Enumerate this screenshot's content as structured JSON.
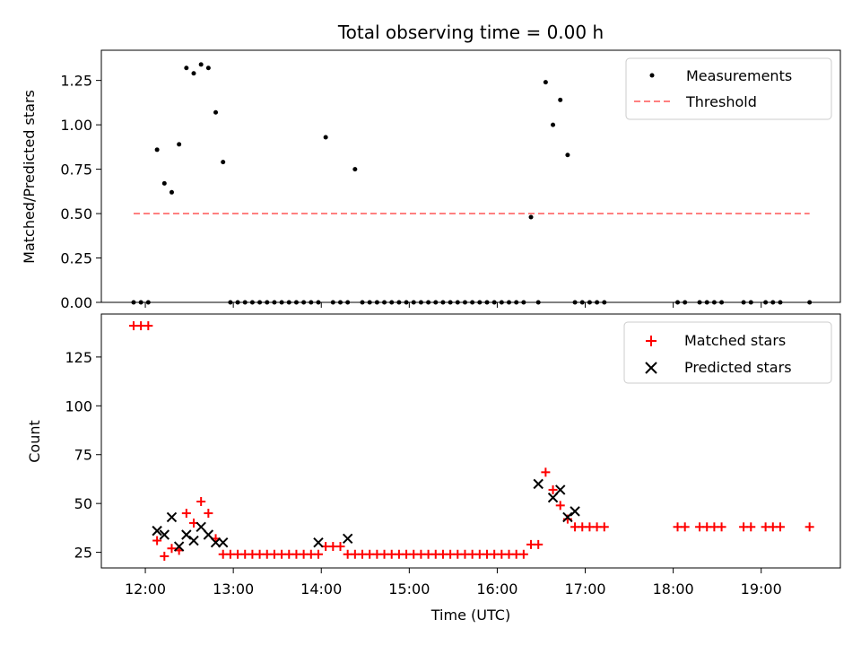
{
  "chart_data": [
    {
      "type": "scatter",
      "title": "Total observing time = 0.00 h",
      "xlabel": "",
      "ylabel": "Matched/Predicted stars",
      "xlim": [
        "11:30",
        "19:54"
      ],
      "ylim": [
        0,
        1.42
      ],
      "yticks": [
        "0.00",
        "0.25",
        "0.50",
        "0.75",
        "1.00",
        "1.25"
      ],
      "grid": false,
      "legend_position": "top-right",
      "series": [
        {
          "name": "Measurements",
          "marker": "dot",
          "color": "#000000",
          "x": [
            "11:52",
            "11:57",
            "12:02",
            "12:08",
            "12:13",
            "12:18",
            "12:23",
            "12:28",
            "12:33",
            "12:38",
            "12:43",
            "12:48",
            "12:53",
            "12:58",
            "13:03",
            "13:08",
            "13:13",
            "13:18",
            "13:23",
            "13:28",
            "13:33",
            "13:38",
            "13:43",
            "13:48",
            "13:53",
            "13:58",
            "14:03",
            "14:08",
            "14:13",
            "14:18",
            "14:23",
            "14:28",
            "14:33",
            "14:38",
            "14:43",
            "14:48",
            "14:53",
            "14:58",
            "15:03",
            "15:08",
            "15:13",
            "15:18",
            "15:23",
            "15:28",
            "15:33",
            "15:38",
            "15:43",
            "15:48",
            "15:53",
            "15:58",
            "16:03",
            "16:08",
            "16:13",
            "16:18",
            "16:23",
            "16:28",
            "16:33",
            "16:38",
            "16:43",
            "16:48",
            "16:53",
            "16:58",
            "17:03",
            "17:08",
            "17:13",
            "18:03",
            "18:08",
            "18:18",
            "18:23",
            "18:28",
            "18:33",
            "18:48",
            "18:53",
            "19:03",
            "19:08",
            "19:13",
            "19:33"
          ],
          "y": [
            0,
            0,
            0,
            0.86,
            0.67,
            0.62,
            0.89,
            1.32,
            1.29,
            1.34,
            1.32,
            1.07,
            0.79,
            0,
            0,
            0,
            0,
            0,
            0,
            0,
            0,
            0,
            0,
            0,
            0,
            0,
            0.93,
            0,
            0,
            0,
            0.75,
            0,
            0,
            0,
            0,
            0,
            0,
            0,
            0,
            0,
            0,
            0,
            0,
            0,
            0,
            0,
            0,
            0,
            0,
            0,
            0,
            0,
            0,
            0,
            0.48,
            0,
            1.24,
            1.0,
            1.14,
            0.83,
            0,
            0,
            0,
            0,
            0,
            0,
            0,
            0,
            0,
            0,
            0,
            0,
            0,
            0,
            0,
            0,
            0
          ]
        },
        {
          "name": "Threshold",
          "style": "dashed",
          "color": "#ff8080",
          "x": [
            "11:52",
            "19:33"
          ],
          "y": [
            0.5,
            0.5
          ]
        }
      ]
    },
    {
      "type": "scatter",
      "title": "",
      "xlabel": "Time (UTC)",
      "ylabel": "Count",
      "xlim": [
        "11:30",
        "19:54"
      ],
      "ylim": [
        17,
        147
      ],
      "yticks": [
        "25",
        "50",
        "75",
        "100",
        "125"
      ],
      "xticks": [
        "12:00",
        "13:00",
        "14:00",
        "15:00",
        "16:00",
        "17:00",
        "18:00",
        "19:00"
      ],
      "grid": false,
      "legend_position": "top-right",
      "series": [
        {
          "name": "Matched stars",
          "marker": "plus",
          "color": "#ff0000",
          "x": [
            "11:52",
            "11:57",
            "12:02",
            "12:08",
            "12:13",
            "12:18",
            "12:23",
            "12:28",
            "12:33",
            "12:38",
            "12:43",
            "12:48",
            "12:53",
            "12:58",
            "13:03",
            "13:08",
            "13:13",
            "13:18",
            "13:23",
            "13:28",
            "13:33",
            "13:38",
            "13:43",
            "13:48",
            "13:53",
            "13:58",
            "14:03",
            "14:08",
            "14:13",
            "14:18",
            "14:23",
            "14:28",
            "14:33",
            "14:38",
            "14:43",
            "14:48",
            "14:53",
            "14:58",
            "15:03",
            "15:08",
            "15:13",
            "15:18",
            "15:23",
            "15:28",
            "15:33",
            "15:38",
            "15:43",
            "15:48",
            "15:53",
            "15:58",
            "16:03",
            "16:08",
            "16:13",
            "16:18",
            "16:23",
            "16:28",
            "16:33",
            "16:38",
            "16:43",
            "16:48",
            "16:53",
            "16:58",
            "17:03",
            "17:08",
            "17:13",
            "18:03",
            "18:08",
            "18:18",
            "18:23",
            "18:28",
            "18:33",
            "18:48",
            "18:53",
            "19:03",
            "19:08",
            "19:13",
            "19:33"
          ],
          "y": [
            141,
            141,
            141,
            31,
            23,
            27,
            26,
            45,
            40,
            51,
            45,
            32,
            24,
            24,
            24,
            24,
            24,
            24,
            24,
            24,
            24,
            24,
            24,
            24,
            24,
            24,
            28,
            28,
            28,
            24,
            24,
            24,
            24,
            24,
            24,
            24,
            24,
            24,
            24,
            24,
            24,
            24,
            24,
            24,
            24,
            24,
            24,
            24,
            24,
            24,
            24,
            24,
            24,
            24,
            29,
            29,
            66,
            57,
            49,
            42,
            38,
            38,
            38,
            38,
            38,
            38,
            38,
            38,
            38,
            38,
            38,
            38,
            38,
            38,
            38,
            38,
            38
          ]
        },
        {
          "name": "Predicted stars",
          "marker": "x",
          "color": "#000000",
          "x": [
            "12:08",
            "12:13",
            "12:18",
            "12:23",
            "12:28",
            "12:33",
            "12:38",
            "12:43",
            "12:48",
            "12:53",
            "13:58",
            "14:18",
            "16:28",
            "16:38",
            "16:43",
            "16:48",
            "16:53"
          ],
          "y": [
            36,
            34,
            43,
            28,
            34,
            31,
            38,
            34,
            30,
            30,
            30,
            32,
            60,
            53,
            57,
            43,
            46
          ]
        }
      ]
    }
  ]
}
